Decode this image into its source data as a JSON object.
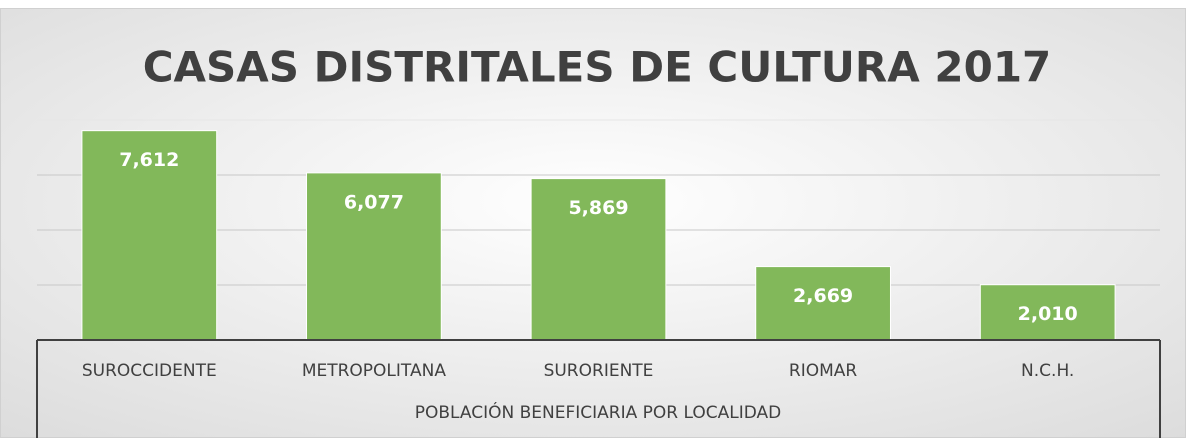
{
  "chart_data": {
    "type": "bar",
    "title": "CASAS DISTRITALES DE CULTURA 2017",
    "x_label": "POBLACIÓN BENEFICIARIA POR LOCALIDAD",
    "categories": [
      "SUROCCIDENTE",
      "METROPOLITANA",
      "SURORIENTE",
      "RIOMAR",
      "N.C.H."
    ],
    "values": [
      7612,
      6077,
      5869,
      2669,
      2010
    ],
    "value_labels": [
      "7,612",
      "6,077",
      "5,869",
      "2,669",
      "2,010"
    ],
    "color": "#82b85a",
    "ylim": [
      0,
      8000
    ],
    "yticks": [
      0,
      2000,
      4000,
      6000,
      8000
    ],
    "grid": true
  }
}
